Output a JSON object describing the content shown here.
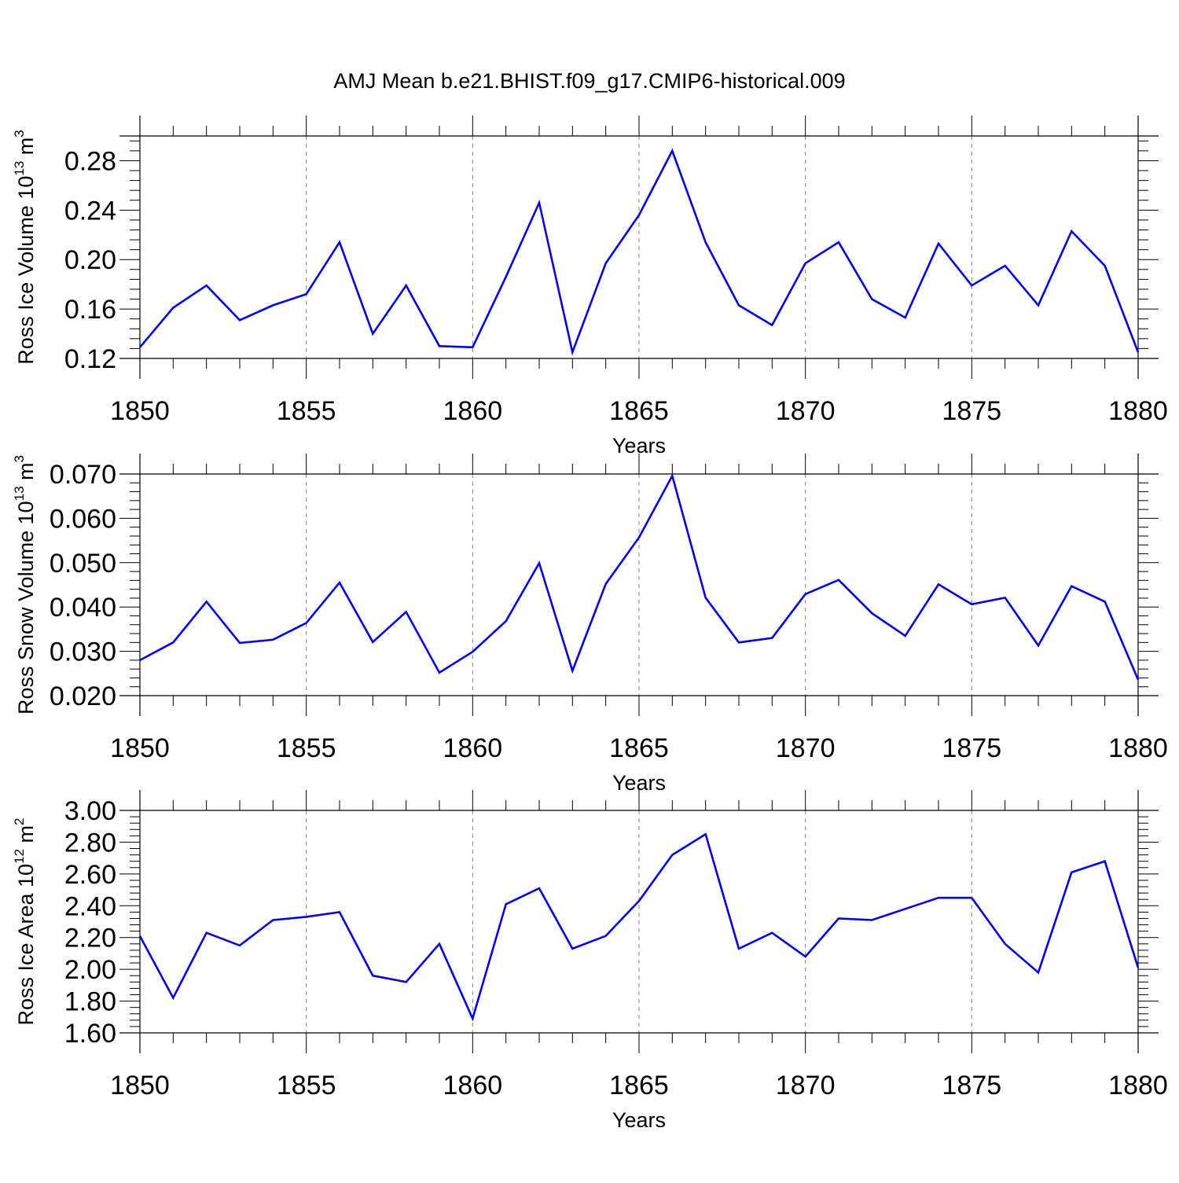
{
  "title": "AMJ Mean b.e21.BHIST.f09_g17.CMIP6-historical.009",
  "colors": {
    "series": "#0000ff",
    "axis": "#000000",
    "grid": "#808080"
  },
  "chart_data": [
    {
      "type": "line",
      "xlabel": "Years",
      "ylabel_base": "Ross Ice Volume 10",
      "ylabel_exp": "13",
      "ylabel_unit": " m",
      "ylabel_unit_exp": "3",
      "xlim": [
        1850,
        1880
      ],
      "ylim": [
        0.12,
        0.3
      ],
      "yticks": [
        "0.12",
        "0.16",
        "0.20",
        "0.24",
        "0.28"
      ],
      "xticks": [
        "1850",
        "1855",
        "1860",
        "1865",
        "1870",
        "1875",
        "1880"
      ],
      "grid": "vertical-dashed",
      "series": [
        {
          "x": [
            1850,
            1851,
            1852,
            1853,
            1854,
            1855,
            1856,
            1857,
            1858,
            1859,
            1860,
            1861,
            1862,
            1863,
            1864,
            1865,
            1866,
            1867,
            1868,
            1869,
            1870,
            1871,
            1872,
            1873,
            1874,
            1875,
            1876,
            1877,
            1878,
            1879,
            1880
          ],
          "values": [
            0.129,
            0.161,
            0.179,
            0.151,
            0.163,
            0.172,
            0.214,
            0.14,
            0.179,
            0.13,
            0.129,
            0.186,
            0.246,
            0.125,
            0.197,
            0.236,
            0.288,
            0.214,
            0.163,
            0.147,
            0.197,
            0.214,
            0.168,
            0.153,
            0.213,
            0.179,
            0.195,
            0.163,
            0.223,
            0.195,
            0.125
          ]
        }
      ]
    },
    {
      "type": "line",
      "xlabel": "Years",
      "ylabel_base": "Ross Snow Volume 10",
      "ylabel_exp": "13",
      "ylabel_unit": " m",
      "ylabel_unit_exp": "3",
      "xlim": [
        1850,
        1880
      ],
      "ylim": [
        0.02,
        0.07
      ],
      "yticks": [
        "0.020",
        "0.030",
        "0.040",
        "0.050",
        "0.060",
        "0.070"
      ],
      "xticks": [
        "1850",
        "1855",
        "1860",
        "1865",
        "1870",
        "1875",
        "1880"
      ],
      "grid": "vertical-dashed",
      "series": [
        {
          "x": [
            1850,
            1851,
            1852,
            1853,
            1854,
            1855,
            1856,
            1857,
            1858,
            1859,
            1860,
            1861,
            1862,
            1863,
            1864,
            1865,
            1866,
            1867,
            1868,
            1869,
            1870,
            1871,
            1872,
            1873,
            1874,
            1875,
            1876,
            1877,
            1878,
            1879,
            1880
          ],
          "values": [
            0.028,
            0.032,
            0.0412,
            0.0319,
            0.0326,
            0.0364,
            0.0455,
            0.0321,
            0.0389,
            0.0252,
            0.0299,
            0.0368,
            0.0499,
            0.0256,
            0.0452,
            0.0557,
            0.0696,
            0.0421,
            0.032,
            0.033,
            0.0429,
            0.0461,
            0.0386,
            0.0335,
            0.0451,
            0.0406,
            0.0421,
            0.0313,
            0.0447,
            0.0412,
            0.0236
          ]
        }
      ]
    },
    {
      "type": "line",
      "xlabel": "Years",
      "ylabel_base": "Ross Ice Area 10",
      "ylabel_exp": "12",
      "ylabel_unit": " m",
      "ylabel_unit_exp": "2",
      "xlim": [
        1850,
        1880
      ],
      "ylim": [
        1.6,
        3.0
      ],
      "yticks": [
        "1.60",
        "1.80",
        "2.00",
        "2.20",
        "2.40",
        "2.60",
        "2.80",
        "3.00"
      ],
      "xticks": [
        "1850",
        "1855",
        "1860",
        "1865",
        "1870",
        "1875",
        "1880"
      ],
      "grid": "vertical-dashed",
      "series": [
        {
          "x": [
            1850,
            1851,
            1852,
            1853,
            1854,
            1855,
            1856,
            1857,
            1858,
            1859,
            1860,
            1861,
            1862,
            1863,
            1864,
            1865,
            1866,
            1867,
            1868,
            1869,
            1870,
            1871,
            1872,
            1873,
            1874,
            1875,
            1876,
            1877,
            1878,
            1879,
            1880
          ],
          "values": [
            2.21,
            1.82,
            2.23,
            2.15,
            2.31,
            2.33,
            2.36,
            1.96,
            1.92,
            2.16,
            1.69,
            2.41,
            2.51,
            2.13,
            2.21,
            2.43,
            2.72,
            2.85,
            2.13,
            2.23,
            2.08,
            2.32,
            2.31,
            2.38,
            2.45,
            2.45,
            2.16,
            1.98,
            2.61,
            2.68,
            2.01
          ]
        }
      ]
    }
  ]
}
